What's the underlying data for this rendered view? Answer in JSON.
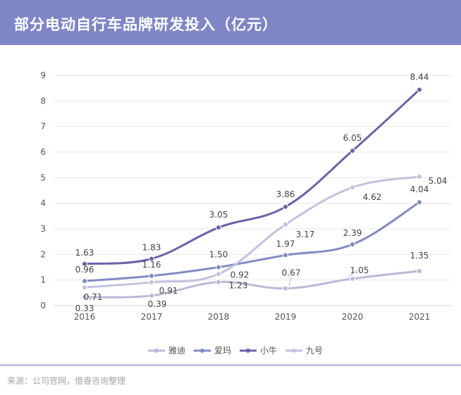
{
  "header": {
    "title": "部分电动自行车品牌研发投入（亿元）"
  },
  "footer": {
    "source": "来源：公司官网，億睿咨询整理"
  },
  "colors": {
    "header_bg": "#7f86c6"
  },
  "chart_data": {
    "type": "line",
    "title": "部分电动自行车品牌研发投入（亿元）",
    "xlabel": "",
    "ylabel": "",
    "categories": [
      "2016",
      "2017",
      "2018",
      "2019",
      "2020",
      "2021"
    ],
    "ylim": [
      0,
      9
    ],
    "yticks": [
      0,
      1,
      2,
      3,
      4,
      5,
      6,
      7,
      8,
      9
    ],
    "grid": true,
    "legend_position": "bottom",
    "series": [
      {
        "name": "雅迪",
        "color": "#b9b9d7",
        "values": [
          0.33,
          0.39,
          0.92,
          0.67,
          1.05,
          1.35
        ]
      },
      {
        "name": "爱玛",
        "color": "#7f8bc3",
        "values": [
          0.96,
          1.16,
          1.5,
          1.97,
          2.39,
          4.04
        ]
      },
      {
        "name": "小牛",
        "color": "#6f5fa6",
        "values": [
          1.63,
          1.83,
          3.05,
          3.86,
          6.05,
          8.44
        ]
      },
      {
        "name": "九号",
        "color": "#c3c1de",
        "values": [
          0.71,
          0.91,
          1.23,
          3.17,
          4.62,
          5.04
        ]
      }
    ]
  }
}
